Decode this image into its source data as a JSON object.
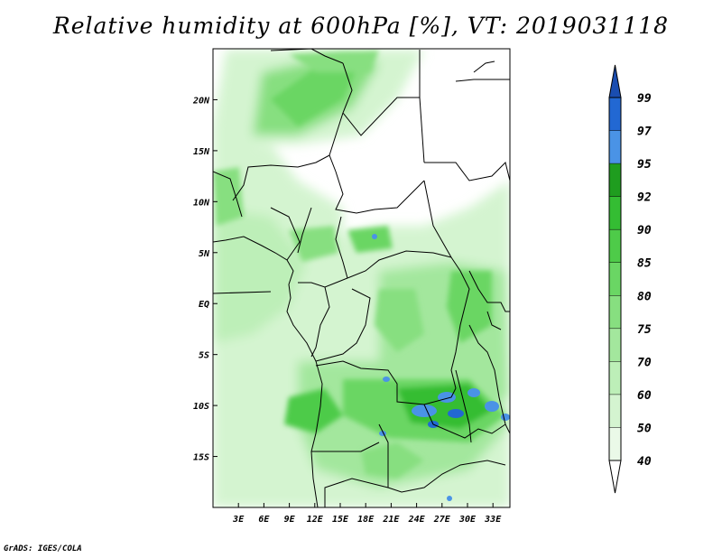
{
  "title": "Relative humidity at 600hPa [%], VT: 2019031118",
  "credit": "GrADS: IGES/COLA",
  "map": {
    "lon_range": [
      0,
      35
    ],
    "lat_range": [
      -20,
      25
    ],
    "lon_ticks": [
      {
        "value": 3,
        "label": "3E"
      },
      {
        "value": 6,
        "label": "6E"
      },
      {
        "value": 9,
        "label": "9E"
      },
      {
        "value": 12,
        "label": "12E"
      },
      {
        "value": 15,
        "label": "15E"
      },
      {
        "value": 18,
        "label": "18E"
      },
      {
        "value": 21,
        "label": "21E"
      },
      {
        "value": 24,
        "label": "24E"
      },
      {
        "value": 27,
        "label": "27E"
      },
      {
        "value": 30,
        "label": "30E"
      },
      {
        "value": 33,
        "label": "33E"
      }
    ],
    "lat_ticks": [
      {
        "value": 20,
        "label": "20N"
      },
      {
        "value": 15,
        "label": "15N"
      },
      {
        "value": 10,
        "label": "10N"
      },
      {
        "value": 5,
        "label": "5N"
      },
      {
        "value": 0,
        "label": "EQ"
      },
      {
        "value": -5,
        "label": "5S"
      },
      {
        "value": -10,
        "label": "10S"
      },
      {
        "value": -15,
        "label": "15S"
      }
    ]
  },
  "colorbar": {
    "levels": [
      "40",
      "50",
      "60",
      "70",
      "75",
      "80",
      "85",
      "90",
      "92",
      "95",
      "97",
      "99"
    ],
    "colors": [
      "#ffffff",
      "#eaf9e8",
      "#d4f4d0",
      "#bdefb8",
      "#a3e79d",
      "#87df80",
      "#6ad664",
      "#4ecb49",
      "#34bd33",
      "#1f9d1f",
      "#4a93e6",
      "#2268d3",
      "#1a4db0"
    ]
  },
  "legend_items": [
    "40",
    "50",
    "60",
    "70",
    "75",
    "80",
    "85",
    "90",
    "92",
    "95",
    "97",
    "99"
  ]
}
